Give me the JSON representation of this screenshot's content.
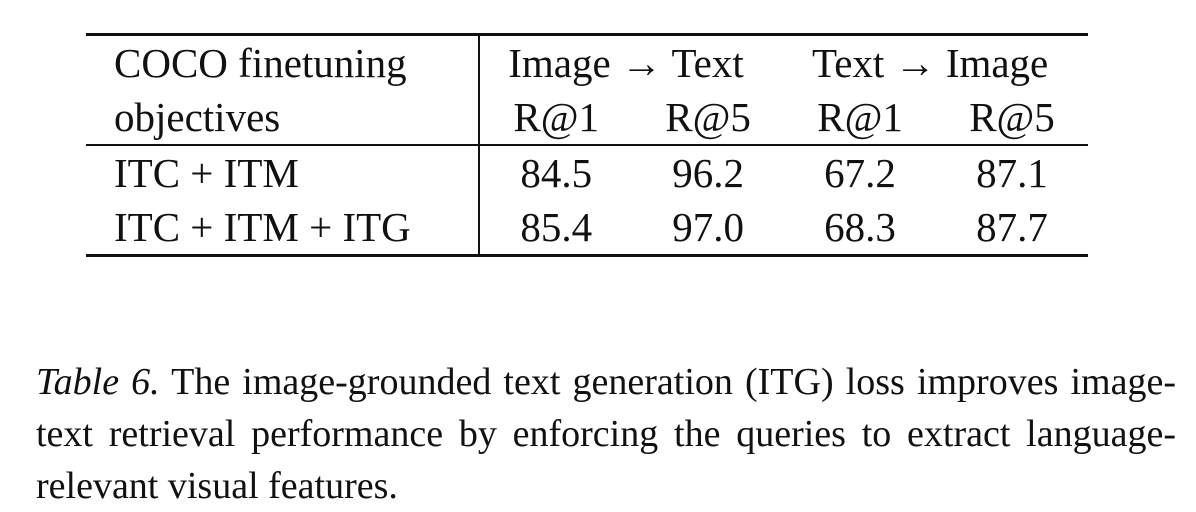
{
  "table": {
    "header": {
      "objectives_line1": "COCO finetuning",
      "objectives_line2": "objectives",
      "group1": "Image → Text",
      "group2": "Text → Image",
      "metrics": [
        "R@1",
        "R@5",
        "R@1",
        "R@5"
      ]
    },
    "rows": [
      {
        "objective": "ITC + ITM",
        "values": [
          "84.5",
          "96.2",
          "67.2",
          "87.1"
        ]
      },
      {
        "objective": "ITC + ITM + ITG",
        "values": [
          "85.4",
          "97.0",
          "68.3",
          "87.7"
        ]
      }
    ]
  },
  "caption": {
    "label": "Table 6.",
    "text": "The image-grounded text generation (ITG) loss improves image-text retrieval performance by enforcing the queries to extract language-relevant visual features."
  }
}
